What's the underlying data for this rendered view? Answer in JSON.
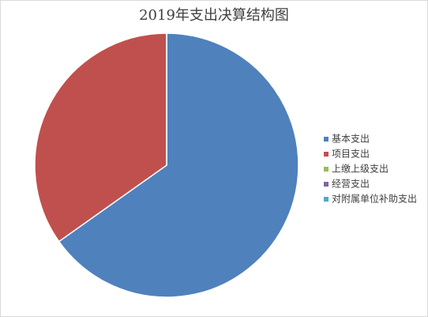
{
  "chart_data": {
    "type": "pie",
    "title": "2019年支出决算结构图",
    "categories": [
      "基本支出",
      "项目支出",
      "上缴上级支出",
      "经营支出",
      "对附属单位补助支出"
    ],
    "values": [
      65.2,
      34.8,
      0,
      0,
      0
    ],
    "colors": [
      "#4f81bd",
      "#c0504d",
      "#9bbb59",
      "#8064a2",
      "#4bacc6"
    ],
    "legend": "right"
  }
}
